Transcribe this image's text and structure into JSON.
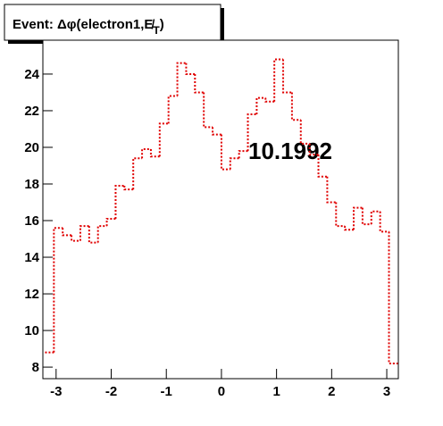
{
  "chart_data": {
    "type": "histogram",
    "title": {
      "main": "Event: Δφ(electron1,E̸",
      "sub": "T",
      "end": ")"
    },
    "annotation": "10.1992",
    "color": "#e00000",
    "bins": [
      -3.2,
      -3.04,
      -2.88,
      -2.72,
      -2.56,
      -2.4,
      -2.24,
      -2.08,
      -1.92,
      -1.76,
      -1.6,
      -1.44,
      -1.28,
      -1.12,
      -0.96,
      -0.8,
      -0.64,
      -0.48,
      -0.32,
      -0.16,
      0,
      0.16,
      0.32,
      0.48,
      0.64,
      0.8,
      0.96,
      1.12,
      1.28,
      1.44,
      1.6,
      1.76,
      1.92,
      2.08,
      2.24,
      2.4,
      2.56,
      2.72,
      2.88,
      3.04,
      3.2
    ],
    "values": [
      8.8,
      15.6,
      15.2,
      14.9,
      15.7,
      14.8,
      15.7,
      16.1,
      17.9,
      17.7,
      19.4,
      19.9,
      19.5,
      21.3,
      22.8,
      24.6,
      24.0,
      23.0,
      21.1,
      20.7,
      18.8,
      19.4,
      19.8,
      21.8,
      22.7,
      22.5,
      24.8,
      23.0,
      21.5,
      20.2,
      19.6,
      18.4,
      17.0,
      15.7,
      15.5,
      16.7,
      15.8,
      16.5,
      15.4,
      8.2
    ],
    "xlim": [
      -3.24,
      3.21
    ],
    "ylim": [
      7.37,
      25.85
    ],
    "xticks": [
      -3,
      -2,
      -1,
      0,
      1,
      2,
      3
    ],
    "yticks": [
      8,
      10,
      12,
      14,
      16,
      18,
      20,
      22,
      24
    ]
  }
}
